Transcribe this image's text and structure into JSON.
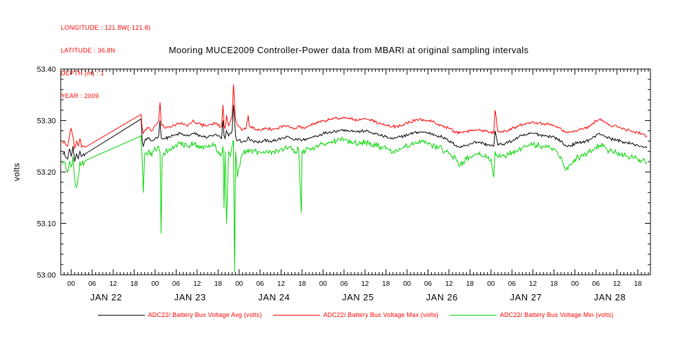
{
  "metadata_box": {
    "lines": [
      "LONGITUDE : 121.8W(-121.8)",
      "LATITUDE : 36.8N",
      "DEPTH (m) : 1",
      "YEAR : 2009"
    ],
    "text_color": "#ff0000"
  },
  "title": "Mooring MUCE2009 Controller-Power data from MBARI at original sampling intervals",
  "legend": {
    "text_color": "#ff0000"
  },
  "chart_data": {
    "type": "line",
    "title": "Mooring MUCE2009 Controller-Power data from MBARI at original sampling intervals",
    "xlabel": "",
    "ylabel": "volts",
    "grid": false,
    "legend_position": "bottom",
    "y_axis": {
      "min": 53.0,
      "max": 53.4,
      "ticks": [
        53.0,
        53.1,
        53.2,
        53.3,
        53.4
      ],
      "minor_step": 0.02
    },
    "x_axis": {
      "unit": "hours",
      "t_min": 0,
      "t_max": 168.6,
      "first_major_t": 3,
      "last_major_t": 165,
      "major_step": 6,
      "minor_step": 1,
      "major_label_cycle": [
        "00",
        "06",
        "12",
        "18"
      ],
      "day_labels": [
        "JAN 22",
        "JAN 23",
        "JAN 24",
        "JAN 25",
        "JAN 26",
        "JAN 27",
        "JAN 28"
      ]
    },
    "series": [
      {
        "name": "ADC22/ Battery Bus Voltage Avg (volts)",
        "color": "#000000",
        "noise": 0.003
      },
      {
        "name": "ADC22/ Battery Bus Voltage Max (volts)",
        "color": "#ff0000",
        "noise": 0.003
      },
      {
        "name": "ADC22/ Battery Bus Voltage Min (volts)",
        "color": "#00d400",
        "noise": 0.006
      }
    ],
    "points_format": [
      "t_hours_from_axis_start",
      "avg",
      "max",
      "min"
    ],
    "points": [
      [
        0.5,
        53.235,
        53.255,
        53.215
      ],
      [
        1,
        53.24,
        53.26,
        53.22
      ],
      [
        1.5,
        53.228,
        53.252,
        53.205
      ],
      [
        2,
        53.225,
        53.25,
        53.2
      ],
      [
        2.5,
        53.245,
        53.27,
        53.22
      ],
      [
        3,
        53.23,
        53.285,
        53.21
      ],
      [
        3.5,
        53.25,
        53.27,
        53.23
      ],
      [
        4,
        53.22,
        53.245,
        53.185
      ],
      [
        4.5,
        53.235,
        53.26,
        53.17
      ],
      [
        5,
        53.225,
        53.25,
        53.19
      ],
      [
        5.5,
        53.24,
        53.265,
        53.22
      ],
      [
        6,
        53.23,
        53.248,
        53.215
      ],
      [
        7,
        53.235,
        53.248,
        53.222
      ],
      [
        23,
        53.303,
        53.312,
        53.27
      ],
      [
        23.3,
        53.26,
        53.285,
        53.22
      ],
      [
        23.6,
        53.25,
        53.275,
        53.16
      ],
      [
        24,
        53.26,
        53.28,
        53.235
      ],
      [
        25,
        53.265,
        53.285,
        53.24
      ],
      [
        26,
        53.26,
        53.28,
        53.23
      ],
      [
        27,
        53.265,
        53.29,
        53.245
      ],
      [
        28,
        53.27,
        53.3,
        53.25
      ],
      [
        28.4,
        53.3,
        53.335,
        53.24
      ],
      [
        28.7,
        53.27,
        53.3,
        53.08
      ],
      [
        29,
        53.265,
        53.29,
        53.23
      ],
      [
        30,
        53.265,
        53.285,
        53.24
      ],
      [
        31,
        53.268,
        53.288,
        53.244
      ],
      [
        32,
        53.27,
        53.29,
        53.25
      ],
      [
        33,
        53.272,
        53.292,
        53.252
      ],
      [
        34,
        53.275,
        53.295,
        53.255
      ],
      [
        35,
        53.272,
        53.292,
        53.252
      ],
      [
        36,
        53.27,
        53.29,
        53.25
      ],
      [
        37,
        53.272,
        53.294,
        53.252
      ],
      [
        38,
        53.275,
        53.3,
        53.255
      ],
      [
        39,
        53.272,
        53.295,
        53.252
      ],
      [
        40,
        53.27,
        53.292,
        53.25
      ],
      [
        41,
        53.268,
        53.29,
        53.248
      ],
      [
        42,
        53.268,
        53.29,
        53.248
      ],
      [
        43,
        53.27,
        53.292,
        53.25
      ],
      [
        44,
        53.272,
        53.295,
        53.252
      ],
      [
        45,
        53.27,
        53.29,
        53.24
      ],
      [
        46,
        53.265,
        53.288,
        53.235
      ],
      [
        46.4,
        53.3,
        53.33,
        53.25
      ],
      [
        46.7,
        53.27,
        53.29,
        53.13
      ],
      [
        47,
        53.265,
        53.285,
        53.24
      ],
      [
        47.4,
        53.28,
        53.31,
        53.1
      ],
      [
        48,
        53.27,
        53.29,
        53.24
      ],
      [
        48.5,
        53.275,
        53.3,
        53.23
      ],
      [
        49,
        53.28,
        53.31,
        53.25
      ],
      [
        49.4,
        53.33,
        53.37,
        53.26
      ],
      [
        49.7,
        53.3,
        53.33,
        53.005
      ],
      [
        50,
        53.27,
        53.3,
        53.24
      ],
      [
        50.5,
        53.26,
        53.29,
        53.19
      ],
      [
        51,
        53.262,
        53.288,
        53.21
      ],
      [
        52,
        53.258,
        53.282,
        53.235
      ],
      [
        53,
        53.26,
        53.285,
        53.24
      ],
      [
        53.6,
        53.268,
        53.31,
        53.245
      ],
      [
        54,
        53.262,
        53.288,
        53.24
      ],
      [
        55,
        53.26,
        53.285,
        53.24
      ],
      [
        56,
        53.258,
        53.282,
        53.238
      ],
      [
        57,
        53.258,
        53.28,
        53.238
      ],
      [
        58,
        53.26,
        53.282,
        53.24
      ],
      [
        59,
        53.262,
        53.285,
        53.242
      ],
      [
        60,
        53.26,
        53.283,
        53.24
      ],
      [
        61,
        53.26,
        53.283,
        53.24
      ],
      [
        62,
        53.262,
        53.285,
        53.242
      ],
      [
        63,
        53.265,
        53.288,
        53.245
      ],
      [
        64,
        53.266,
        53.289,
        53.246
      ],
      [
        65,
        53.268,
        53.29,
        53.248
      ],
      [
        66,
        53.265,
        53.287,
        53.245
      ],
      [
        67,
        53.262,
        53.285,
        53.24
      ],
      [
        68,
        53.265,
        53.29,
        53.245
      ],
      [
        68.8,
        53.26,
        53.285,
        53.12
      ],
      [
        69,
        53.262,
        53.285,
        53.24
      ],
      [
        70,
        53.264,
        53.287,
        53.242
      ],
      [
        71,
        53.265,
        53.29,
        53.245
      ],
      [
        72,
        53.268,
        53.292,
        53.248
      ],
      [
        73,
        53.27,
        53.295,
        53.25
      ],
      [
        74,
        53.272,
        53.297,
        53.252
      ],
      [
        75,
        53.275,
        53.3,
        53.255
      ],
      [
        76,
        53.276,
        53.3,
        53.256
      ],
      [
        77,
        53.278,
        53.302,
        53.258
      ],
      [
        78,
        53.279,
        53.303,
        53.259
      ],
      [
        79,
        53.28,
        53.305,
        53.26
      ],
      [
        80,
        53.281,
        53.305,
        53.261
      ],
      [
        81,
        53.282,
        53.305,
        53.262
      ],
      [
        82,
        53.281,
        53.304,
        53.261
      ],
      [
        83,
        53.28,
        53.303,
        53.26
      ],
      [
        84,
        53.279,
        53.302,
        53.258
      ],
      [
        85,
        53.278,
        53.3,
        53.255
      ],
      [
        86,
        53.279,
        53.302,
        53.257
      ],
      [
        87,
        53.28,
        53.304,
        53.26
      ],
      [
        88,
        53.278,
        53.302,
        53.256
      ],
      [
        89,
        53.276,
        53.3,
        53.252
      ],
      [
        90,
        53.274,
        53.297,
        53.251
      ],
      [
        91,
        53.272,
        53.295,
        53.25
      ],
      [
        92,
        53.27,
        53.292,
        53.247
      ],
      [
        93,
        53.268,
        53.29,
        53.245
      ],
      [
        94,
        53.266,
        53.289,
        53.242
      ],
      [
        95,
        53.264,
        53.288,
        53.24
      ],
      [
        96,
        53.266,
        53.289,
        53.242
      ],
      [
        97,
        53.268,
        53.29,
        53.244
      ],
      [
        98,
        53.27,
        53.292,
        53.247
      ],
      [
        99,
        53.272,
        53.295,
        53.25
      ],
      [
        100,
        53.274,
        53.297,
        53.252
      ],
      [
        101,
        53.276,
        53.3,
        53.255
      ],
      [
        102,
        53.277,
        53.301,
        53.256
      ],
      [
        103,
        53.278,
        53.302,
        53.258
      ],
      [
        104,
        53.277,
        53.301,
        53.256
      ],
      [
        105,
        53.276,
        53.3,
        53.254
      ],
      [
        106,
        53.274,
        53.298,
        53.252
      ],
      [
        107,
        53.272,
        53.296,
        53.25
      ],
      [
        108,
        53.27,
        53.293,
        53.247
      ],
      [
        109,
        53.268,
        53.29,
        53.245
      ],
      [
        110,
        53.264,
        53.287,
        53.24
      ],
      [
        111,
        53.26,
        53.285,
        53.235
      ],
      [
        112,
        53.256,
        53.281,
        53.23
      ],
      [
        113,
        53.252,
        53.278,
        53.225
      ],
      [
        114,
        53.248,
        53.275,
        53.21
      ],
      [
        115,
        53.25,
        53.276,
        53.22
      ],
      [
        116,
        53.252,
        53.278,
        53.225
      ],
      [
        117,
        53.255,
        53.28,
        53.23
      ],
      [
        118,
        53.257,
        53.281,
        53.232
      ],
      [
        119,
        53.258,
        53.282,
        53.235
      ],
      [
        120,
        53.257,
        53.281,
        53.233
      ],
      [
        121,
        53.255,
        53.28,
        53.23
      ],
      [
        122,
        53.253,
        53.279,
        53.227
      ],
      [
        123,
        53.252,
        53.278,
        53.225
      ],
      [
        123.8,
        53.25,
        53.275,
        53.19
      ],
      [
        124.2,
        53.28,
        53.32,
        53.24
      ],
      [
        125,
        53.252,
        53.278,
        53.228
      ],
      [
        126,
        53.254,
        53.279,
        53.23
      ],
      [
        127,
        53.255,
        53.28,
        53.232
      ],
      [
        128,
        53.258,
        53.282,
        53.235
      ],
      [
        129,
        53.26,
        53.285,
        53.238
      ],
      [
        130,
        53.264,
        53.287,
        53.242
      ],
      [
        131,
        53.268,
        53.29,
        53.245
      ],
      [
        132,
        53.27,
        53.292,
        53.248
      ],
      [
        133,
        53.272,
        53.295,
        53.25
      ],
      [
        134,
        53.274,
        53.296,
        53.252
      ],
      [
        135,
        53.275,
        53.298,
        53.253
      ],
      [
        136,
        53.274,
        53.296,
        53.252
      ],
      [
        137,
        53.272,
        53.295,
        53.25
      ],
      [
        138,
        53.271,
        53.294,
        53.249
      ],
      [
        139,
        53.27,
        53.293,
        53.248
      ],
      [
        140,
        53.269,
        53.291,
        53.246
      ],
      [
        141,
        53.268,
        53.29,
        53.245
      ],
      [
        142,
        53.264,
        53.288,
        53.238
      ],
      [
        143,
        53.26,
        53.285,
        53.23
      ],
      [
        144,
        53.252,
        53.278,
        53.21
      ],
      [
        145,
        53.25,
        53.276,
        53.205
      ],
      [
        146,
        53.252,
        53.278,
        53.215
      ],
      [
        147,
        53.255,
        53.28,
        53.225
      ],
      [
        148,
        53.256,
        53.281,
        53.228
      ],
      [
        149,
        53.258,
        53.283,
        53.232
      ],
      [
        150,
        53.26,
        53.285,
        53.235
      ],
      [
        151,
        53.262,
        53.287,
        53.238
      ],
      [
        152,
        53.266,
        53.293,
        53.243
      ],
      [
        153,
        53.27,
        53.3,
        53.248
      ],
      [
        154,
        53.275,
        53.302,
        53.252
      ],
      [
        155,
        53.272,
        53.3,
        53.25
      ],
      [
        156,
        53.268,
        53.295,
        53.245
      ],
      [
        157,
        53.265,
        53.29,
        53.24
      ],
      [
        158,
        53.263,
        53.289,
        53.238
      ],
      [
        159,
        53.262,
        53.288,
        53.236
      ],
      [
        160,
        53.26,
        53.286,
        53.234
      ],
      [
        161,
        53.258,
        53.284,
        53.232
      ],
      [
        162,
        53.256,
        53.282,
        53.23
      ],
      [
        163,
        53.255,
        53.28,
        53.228
      ],
      [
        164,
        53.253,
        53.278,
        53.226
      ],
      [
        165,
        53.252,
        53.277,
        53.225
      ],
      [
        166,
        53.25,
        53.274,
        53.222
      ],
      [
        167,
        53.248,
        53.272,
        53.22
      ],
      [
        167.6,
        53.247,
        53.27,
        53.218
      ]
    ]
  }
}
